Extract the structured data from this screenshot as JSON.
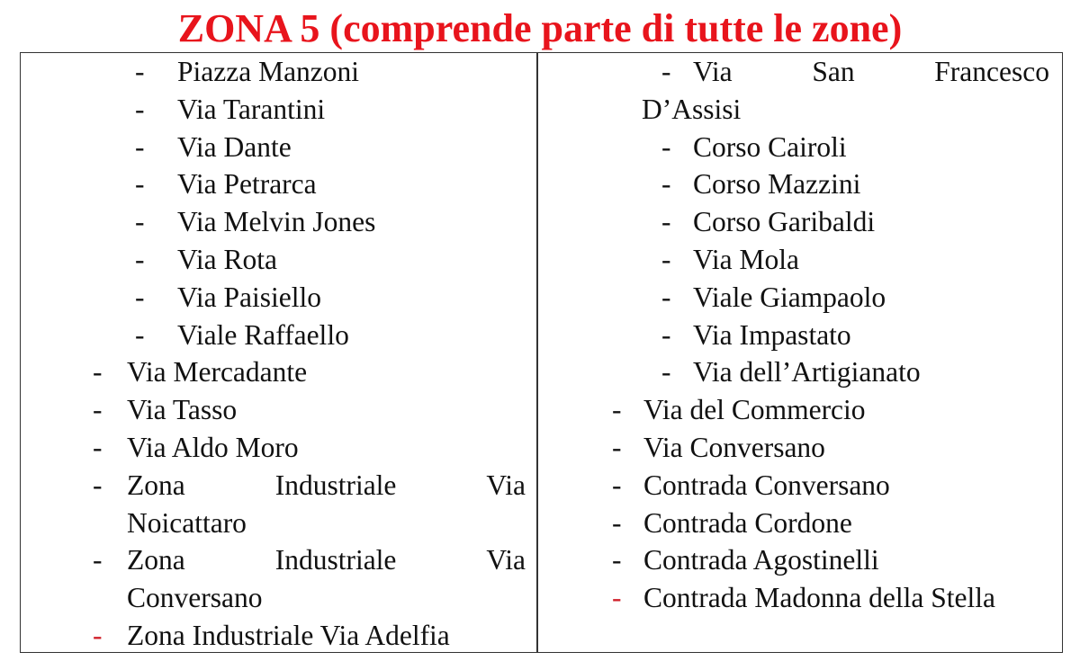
{
  "title": "ZONA 5 (comprende parte di tutte le zone)",
  "colors": {
    "title": "#e8141c",
    "red_dash": "#d0202a",
    "text": "#111111"
  },
  "left_column": [
    {
      "level": 1,
      "dash_red": false,
      "lines": [
        "Piazza Manzoni"
      ]
    },
    {
      "level": 1,
      "dash_red": false,
      "lines": [
        "Via Tarantini"
      ]
    },
    {
      "level": 1,
      "dash_red": false,
      "lines": [
        "Via Dante"
      ]
    },
    {
      "level": 1,
      "dash_red": false,
      "lines": [
        "Via Petrarca"
      ]
    },
    {
      "level": 1,
      "dash_red": false,
      "lines": [
        "Via Melvin Jones"
      ]
    },
    {
      "level": 1,
      "dash_red": false,
      "lines": [
        "Via Rota"
      ]
    },
    {
      "level": 1,
      "dash_red": false,
      "lines": [
        "Via Paisiello"
      ]
    },
    {
      "level": 1,
      "dash_red": false,
      "lines": [
        "Viale Raffaello"
      ]
    },
    {
      "level": 2,
      "dash_red": false,
      "lines": [
        "Via Mercadante"
      ]
    },
    {
      "level": 2,
      "dash_red": false,
      "lines": [
        "Via Tasso"
      ]
    },
    {
      "level": 2,
      "dash_red": false,
      "lines": [
        "Via Aldo Moro"
      ]
    },
    {
      "level": 2,
      "dash_red": false,
      "lines": [
        "Zona Industriale Via",
        "Noicattaro"
      ]
    },
    {
      "level": 2,
      "dash_red": false,
      "lines": [
        "Zona Industriale Via",
        "Conversano"
      ]
    },
    {
      "level": 2,
      "dash_red": true,
      "lines": [
        "Zona Industriale Via Adelfia"
      ]
    }
  ],
  "right_column": [
    {
      "level": 1,
      "dash_red": false,
      "lines": [
        "Via San Francesco",
        "D’Assisi"
      ]
    },
    {
      "level": 1,
      "dash_red": false,
      "lines": [
        "Corso Cairoli"
      ]
    },
    {
      "level": 1,
      "dash_red": false,
      "lines": [
        "Corso Mazzini"
      ]
    },
    {
      "level": 1,
      "dash_red": false,
      "lines": [
        "Corso Garibaldi"
      ]
    },
    {
      "level": 1,
      "dash_red": false,
      "lines": [
        "Via Mola"
      ]
    },
    {
      "level": 1,
      "dash_red": false,
      "lines": [
        "Viale Giampaolo"
      ]
    },
    {
      "level": 1,
      "dash_red": false,
      "lines": [
        "Via Impastato"
      ]
    },
    {
      "level": 1,
      "dash_red": false,
      "lines": [
        "Via dell’Artigianato"
      ]
    },
    {
      "level": 2,
      "dash_red": false,
      "lines": [
        "Via del Commercio"
      ]
    },
    {
      "level": 2,
      "dash_red": false,
      "lines": [
        "Via Conversano"
      ]
    },
    {
      "level": 2,
      "dash_red": false,
      "lines": [
        "Contrada Conversano"
      ]
    },
    {
      "level": 2,
      "dash_red": false,
      "lines": [
        "Contrada Cordone"
      ]
    },
    {
      "level": 2,
      "dash_red": false,
      "lines": [
        "Contrada Agostinelli"
      ]
    },
    {
      "level": 2,
      "dash_red": true,
      "lines": [
        "Contrada Madonna della Stella"
      ]
    }
  ],
  "dash": "-"
}
